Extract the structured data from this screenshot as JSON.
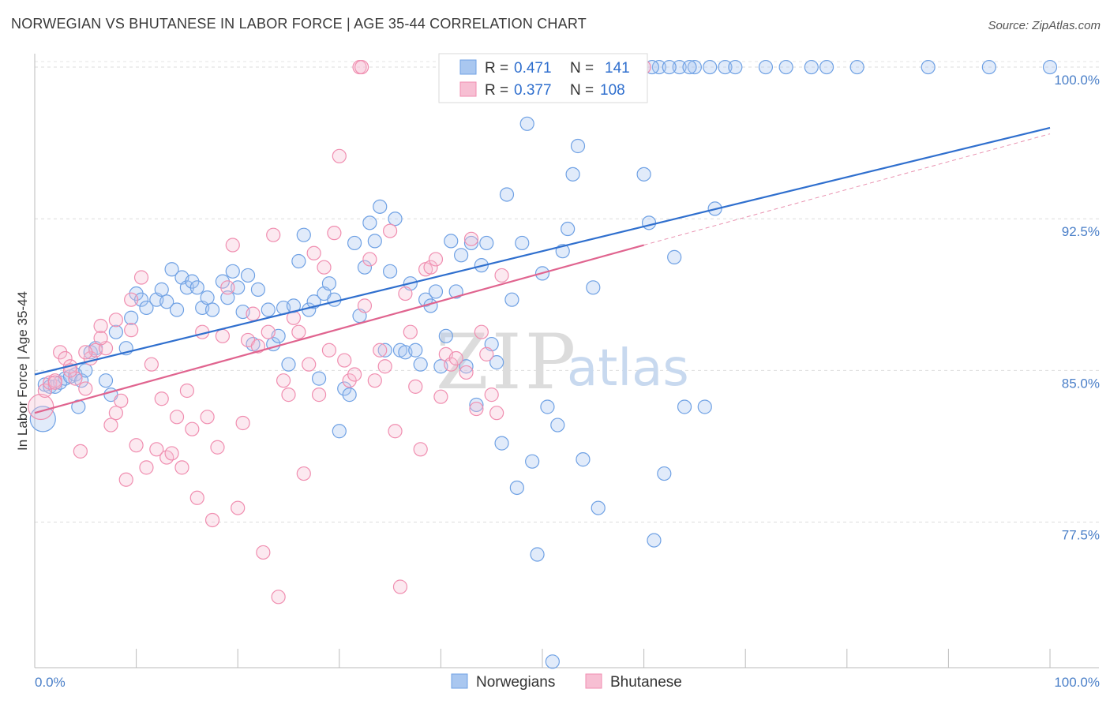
{
  "header": {
    "title": "NORWEGIAN VS BHUTANESE IN LABOR FORCE | AGE 35-44 CORRELATION CHART",
    "source": "Source: ZipAtlas.com"
  },
  "watermark": {
    "zip": "ZIP",
    "atlas": "atlas"
  },
  "chart_data": {
    "type": "scatter",
    "title": "NORWEGIAN VS BHUTANESE IN LABOR FORCE | AGE 35-44 CORRELATION CHART",
    "ylabel": "In Labor Force | Age 35-44",
    "xlim": [
      0,
      100
    ],
    "ylim": [
      70.3,
      100.9
    ],
    "x_ticks": [
      {
        "value": 0,
        "label": "0.0%"
      },
      {
        "value": 100,
        "label": "100.0%"
      }
    ],
    "y_ticks": [
      {
        "value": 100.0,
        "label": "100.0%"
      },
      {
        "value": 92.5,
        "label": "92.5%"
      },
      {
        "value": 85.0,
        "label": "85.0%"
      },
      {
        "value": 77.5,
        "label": "77.5%"
      }
    ],
    "grid": true,
    "legend_position": "top-center",
    "colors": {
      "norwegians": "#6fa1e4",
      "bhutanese": "#f08eb0",
      "norwegians_line": "#2f6fce",
      "bhutanese_line": "#e0648f"
    },
    "legend": {
      "r_label": "R =",
      "n_label": "N =",
      "rows": [
        {
          "r": "0.471",
          "n": "141"
        },
        {
          "r": "0.377",
          "n": "108"
        }
      ]
    },
    "series": [
      {
        "name": "Norwegians",
        "trend": {
          "x0": 0,
          "y0": 84.8,
          "x1": 100,
          "y1": 97.0
        },
        "points": [
          [
            0.8,
            82.6
          ],
          [
            1.0,
            84.3
          ],
          [
            1.5,
            84.2
          ],
          [
            2.0,
            84.2
          ],
          [
            2.5,
            84.4
          ],
          [
            3.0,
            84.6
          ],
          [
            3.5,
            84.7
          ],
          [
            4.0,
            84.8
          ],
          [
            4.3,
            83.2
          ],
          [
            4.6,
            84.5
          ],
          [
            5.0,
            85.0
          ],
          [
            5.5,
            85.9
          ],
          [
            6.0,
            86.1
          ],
          [
            7.0,
            84.5
          ],
          [
            7.5,
            83.8
          ],
          [
            8.0,
            86.9
          ],
          [
            9.0,
            86.1
          ],
          [
            9.5,
            87.6
          ],
          [
            10.0,
            88.8
          ],
          [
            10.5,
            88.5
          ],
          [
            11.0,
            88.1
          ],
          [
            12.0,
            88.5
          ],
          [
            12.5,
            89.0
          ],
          [
            13.0,
            88.4
          ],
          [
            13.5,
            90.0
          ],
          [
            14.0,
            88.0
          ],
          [
            14.5,
            89.6
          ],
          [
            15.0,
            89.1
          ],
          [
            15.5,
            89.4
          ],
          [
            16.0,
            89.1
          ],
          [
            16.5,
            88.1
          ],
          [
            17.0,
            88.6
          ],
          [
            17.5,
            88.0
          ],
          [
            18.5,
            89.4
          ],
          [
            19.0,
            88.6
          ],
          [
            19.5,
            89.9
          ],
          [
            20.0,
            89.1
          ],
          [
            20.5,
            87.9
          ],
          [
            21.0,
            89.7
          ],
          [
            21.5,
            86.3
          ],
          [
            22.0,
            89.0
          ],
          [
            23.0,
            88.0
          ],
          [
            23.5,
            86.3
          ],
          [
            24.0,
            86.7
          ],
          [
            24.5,
            88.1
          ],
          [
            25.0,
            85.3
          ],
          [
            25.5,
            88.2
          ],
          [
            26.0,
            90.4
          ],
          [
            26.5,
            91.7
          ],
          [
            27.0,
            88.0
          ],
          [
            27.5,
            88.4
          ],
          [
            28.0,
            84.6
          ],
          [
            28.5,
            88.8
          ],
          [
            29.0,
            89.3
          ],
          [
            29.5,
            88.5
          ],
          [
            30.0,
            82.0
          ],
          [
            30.5,
            84.1
          ],
          [
            31.0,
            83.8
          ],
          [
            31.5,
            91.3
          ],
          [
            32.0,
            87.7
          ],
          [
            32.5,
            90.1
          ],
          [
            33.0,
            92.3
          ],
          [
            33.5,
            91.4
          ],
          [
            34.0,
            93.1
          ],
          [
            34.5,
            86.0
          ],
          [
            35.0,
            89.9
          ],
          [
            35.5,
            92.5
          ],
          [
            36.0,
            86.0
          ],
          [
            36.5,
            85.9
          ],
          [
            37.0,
            89.3
          ],
          [
            37.5,
            86.0
          ],
          [
            38.0,
            85.3
          ],
          [
            38.5,
            88.5
          ],
          [
            39.0,
            88.2
          ],
          [
            39.5,
            88.9
          ],
          [
            40.0,
            85.2
          ],
          [
            40.5,
            86.7
          ],
          [
            41.0,
            91.4
          ],
          [
            41.5,
            88.9
          ],
          [
            42.0,
            90.7
          ],
          [
            42.5,
            85.2
          ],
          [
            43.0,
            91.3
          ],
          [
            43.5,
            83.3
          ],
          [
            44.0,
            90.2
          ],
          [
            44.5,
            91.3
          ],
          [
            45.0,
            86.3
          ],
          [
            45.5,
            85.4
          ],
          [
            46.0,
            81.4
          ],
          [
            46.5,
            93.7
          ],
          [
            47.0,
            88.5
          ],
          [
            47.5,
            79.2
          ],
          [
            48.0,
            91.3
          ],
          [
            48.5,
            97.2
          ],
          [
            49.0,
            80.5
          ],
          [
            49.5,
            75.9
          ],
          [
            50.0,
            89.8
          ],
          [
            50.5,
            83.2
          ],
          [
            51.0,
            70.6
          ],
          [
            51.5,
            82.3
          ],
          [
            52.0,
            90.9
          ],
          [
            52.5,
            92.0
          ],
          [
            53.0,
            94.7
          ],
          [
            53.5,
            96.1
          ],
          [
            54.0,
            80.6
          ],
          [
            55.0,
            89.1
          ],
          [
            55.5,
            78.2
          ],
          [
            60.0,
            94.7
          ],
          [
            60.5,
            92.3
          ],
          [
            61.0,
            76.6
          ],
          [
            62.0,
            79.9
          ],
          [
            63.0,
            90.6
          ],
          [
            64.0,
            83.2
          ],
          [
            66.0,
            83.2
          ],
          [
            67.0,
            93.0
          ],
          [
            76.5,
            100.0
          ],
          [
            57.0,
            100.0
          ],
          [
            59.0,
            100.0
          ],
          [
            61.5,
            100.0
          ],
          [
            63.5,
            100.0
          ],
          [
            65.0,
            100.0
          ],
          [
            68.0,
            100.0
          ],
          [
            69.0,
            100.0
          ],
          [
            72.0,
            100.0
          ],
          [
            74.0,
            100.0
          ],
          [
            78.0,
            100.0
          ],
          [
            81.0,
            100.0
          ],
          [
            88.0,
            100.0
          ],
          [
            94.0,
            100.0
          ],
          [
            100.0,
            100.0
          ],
          [
            59.5,
            100.0
          ],
          [
            62.5,
            100.0
          ],
          [
            64.5,
            100.0
          ],
          [
            66.5,
            100.0
          ],
          [
            58.0,
            100.0
          ],
          [
            60.8,
            100.0
          ],
          [
            56.5,
            100.0
          ]
        ]
      },
      {
        "name": "Bhutanese",
        "trend": {
          "x0": 0,
          "y0": 82.9,
          "x1": 60,
          "y1": 91.2,
          "dash_x1": 100,
          "dash_y1": 96.7
        },
        "points": [
          [
            0.6,
            83.2
          ],
          [
            1.0,
            84.0
          ],
          [
            1.5,
            84.4
          ],
          [
            2.0,
            84.5
          ],
          [
            2.5,
            85.9
          ],
          [
            3.0,
            85.6
          ],
          [
            3.5,
            85.2
          ],
          [
            4.0,
            84.6
          ],
          [
            4.5,
            81.0
          ],
          [
            5.0,
            84.1
          ],
          [
            5.5,
            85.6
          ],
          [
            6.0,
            86.0
          ],
          [
            6.5,
            87.2
          ],
          [
            7.0,
            86.1
          ],
          [
            7.5,
            82.3
          ],
          [
            8.0,
            82.9
          ],
          [
            8.5,
            83.5
          ],
          [
            9.0,
            79.6
          ],
          [
            9.5,
            87.0
          ],
          [
            10.0,
            81.3
          ],
          [
            10.5,
            89.6
          ],
          [
            11.0,
            80.2
          ],
          [
            11.5,
            85.3
          ],
          [
            12.0,
            81.1
          ],
          [
            12.5,
            83.6
          ],
          [
            13.0,
            80.7
          ],
          [
            13.5,
            80.9
          ],
          [
            14.0,
            82.7
          ],
          [
            14.5,
            80.2
          ],
          [
            15.0,
            84.0
          ],
          [
            15.5,
            82.1
          ],
          [
            16.0,
            78.7
          ],
          [
            16.5,
            86.9
          ],
          [
            17.0,
            82.7
          ],
          [
            17.5,
            77.6
          ],
          [
            18.0,
            81.2
          ],
          [
            18.5,
            86.7
          ],
          [
            19.0,
            89.1
          ],
          [
            19.5,
            91.2
          ],
          [
            20.0,
            78.2
          ],
          [
            20.5,
            82.4
          ],
          [
            21.0,
            86.5
          ],
          [
            21.5,
            87.8
          ],
          [
            22.0,
            86.2
          ],
          [
            22.5,
            76.0
          ],
          [
            23.0,
            86.9
          ],
          [
            23.5,
            91.7
          ],
          [
            24.0,
            73.8
          ],
          [
            24.5,
            84.5
          ],
          [
            25.0,
            83.8
          ],
          [
            25.5,
            87.6
          ],
          [
            26.0,
            86.9
          ],
          [
            26.5,
            79.9
          ],
          [
            27.0,
            85.3
          ],
          [
            27.5,
            90.8
          ],
          [
            28.0,
            83.8
          ],
          [
            28.5,
            90.1
          ],
          [
            29.0,
            86.0
          ],
          [
            29.5,
            91.8
          ],
          [
            30.0,
            95.6
          ],
          [
            30.5,
            85.5
          ],
          [
            31.0,
            84.5
          ],
          [
            31.5,
            84.8
          ],
          [
            32.0,
            100.0
          ],
          [
            32.2,
            100.0
          ],
          [
            32.5,
            88.2
          ],
          [
            33.0,
            90.5
          ],
          [
            33.5,
            84.5
          ],
          [
            34.0,
            86.0
          ],
          [
            34.5,
            85.2
          ],
          [
            35.0,
            91.9
          ],
          [
            35.5,
            82.0
          ],
          [
            36.0,
            74.3
          ],
          [
            36.5,
            88.8
          ],
          [
            37.0,
            86.9
          ],
          [
            37.5,
            84.2
          ],
          [
            38.0,
            81.1
          ],
          [
            38.5,
            90.0
          ],
          [
            39.0,
            90.1
          ],
          [
            39.5,
            90.5
          ],
          [
            40.0,
            83.7
          ],
          [
            40.5,
            85.8
          ],
          [
            41.0,
            85.3
          ],
          [
            41.5,
            85.6
          ],
          [
            42.0,
            98.7
          ],
          [
            42.5,
            84.9
          ],
          [
            43.0,
            91.5
          ],
          [
            43.5,
            83.1
          ],
          [
            44.0,
            86.9
          ],
          [
            44.5,
            85.8
          ],
          [
            45.0,
            83.8
          ],
          [
            45.5,
            82.9
          ],
          [
            46.0,
            89.7
          ],
          [
            46.5,
            100.0
          ],
          [
            47.0,
            100.0
          ],
          [
            48.0,
            100.0
          ],
          [
            50.0,
            100.0
          ],
          [
            52.0,
            100.0
          ],
          [
            54.0,
            100.0
          ],
          [
            56.0,
            100.0
          ],
          [
            58.0,
            100.0
          ],
          [
            60.0,
            100.0
          ],
          [
            2.0,
            84.4
          ],
          [
            3.5,
            85.0
          ],
          [
            5.0,
            85.9
          ],
          [
            6.5,
            86.6
          ],
          [
            8.0,
            87.5
          ],
          [
            9.5,
            88.5
          ]
        ]
      }
    ]
  },
  "bottom_legend": {
    "norwegians": "Norwegians",
    "bhutanese": "Bhutanese"
  }
}
